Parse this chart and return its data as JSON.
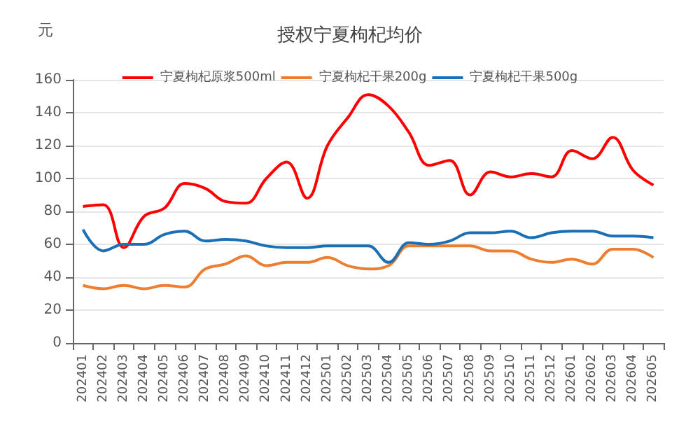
{
  "chart_data": {
    "type": "line",
    "title": "授权宁夏枸杞均价",
    "ylabel": "元",
    "categories": [
      "202401",
      "202402",
      "202403",
      "202404",
      "202405",
      "202406",
      "202407",
      "202408",
      "202409",
      "202410",
      "202411",
      "202412",
      "202501",
      "202502",
      "202503",
      "202504",
      "202505",
      "202506",
      "202507",
      "202508",
      "202509",
      "202510",
      "202511",
      "202512",
      "202601",
      "202602",
      "202603",
      "202604",
      "202605"
    ],
    "series": [
      {
        "name": "宁夏枸杞原浆500ml",
        "color": "#ff0000",
        "values": [
          83,
          84,
          58,
          77,
          82,
          97,
          94,
          86,
          85,
          100,
          110,
          88,
          120,
          137,
          151,
          144,
          128,
          108,
          111,
          90,
          104,
          101,
          103,
          101,
          117,
          112,
          125,
          105,
          96
        ]
      },
      {
        "name": "宁夏枸杞干果200g",
        "color": "#ed7d31",
        "values": [
          35,
          33,
          35,
          33,
          35,
          34,
          45,
          48,
          53,
          47,
          49,
          49,
          52,
          47,
          45,
          47,
          59,
          59,
          59,
          59,
          56,
          56,
          51,
          49,
          51,
          48,
          57,
          57,
          52
        ]
      },
      {
        "name": "宁夏枸杞干果500g",
        "color": "#1b6fb5",
        "values": [
          69,
          56,
          60,
          60,
          66,
          68,
          62,
          63,
          62,
          59,
          58,
          58,
          59,
          59,
          59,
          49,
          61,
          60,
          62,
          67,
          67,
          68,
          64,
          67,
          68,
          68,
          65,
          65,
          64
        ]
      }
    ],
    "ylim": [
      0,
      160
    ],
    "yticks": [
      0,
      20,
      40,
      60,
      80,
      100,
      120,
      140,
      160
    ],
    "grid": "y",
    "legend": "top",
    "marker": "none",
    "line_style": "solid"
  }
}
